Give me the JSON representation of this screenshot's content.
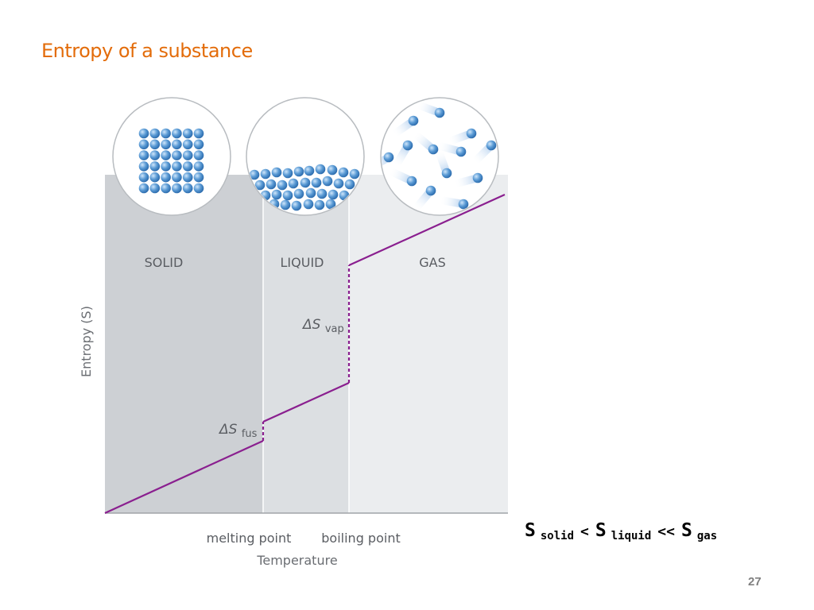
{
  "slide": {
    "title": "Entropy of a substance",
    "page_number": "27"
  },
  "diagram": {
    "y_axis_label": "Entropy (S)",
    "x_axis_label": "Temperature",
    "phases": [
      "SOLID",
      "LIQUID",
      "GAS"
    ],
    "x_ticks": [
      "melting point",
      "boiling point"
    ],
    "delta_fus": {
      "symbol": "ΔS",
      "subscript": "fus"
    },
    "delta_vap": {
      "symbol": "ΔS",
      "subscript": "vap"
    },
    "colors": {
      "solid_region": "#cdd0d4",
      "liquid_region": "#dcdfe2",
      "gas_region": "#ebedef",
      "entropy_line": "#8a1f8f",
      "molecule": "#5b9bd5"
    }
  },
  "relation": {
    "s1": "S",
    "sub1": "solid",
    "op1": "<",
    "s2": "S",
    "sub2": "liquid",
    "op2": "<<",
    "s3": "S",
    "sub3": "gas"
  }
}
